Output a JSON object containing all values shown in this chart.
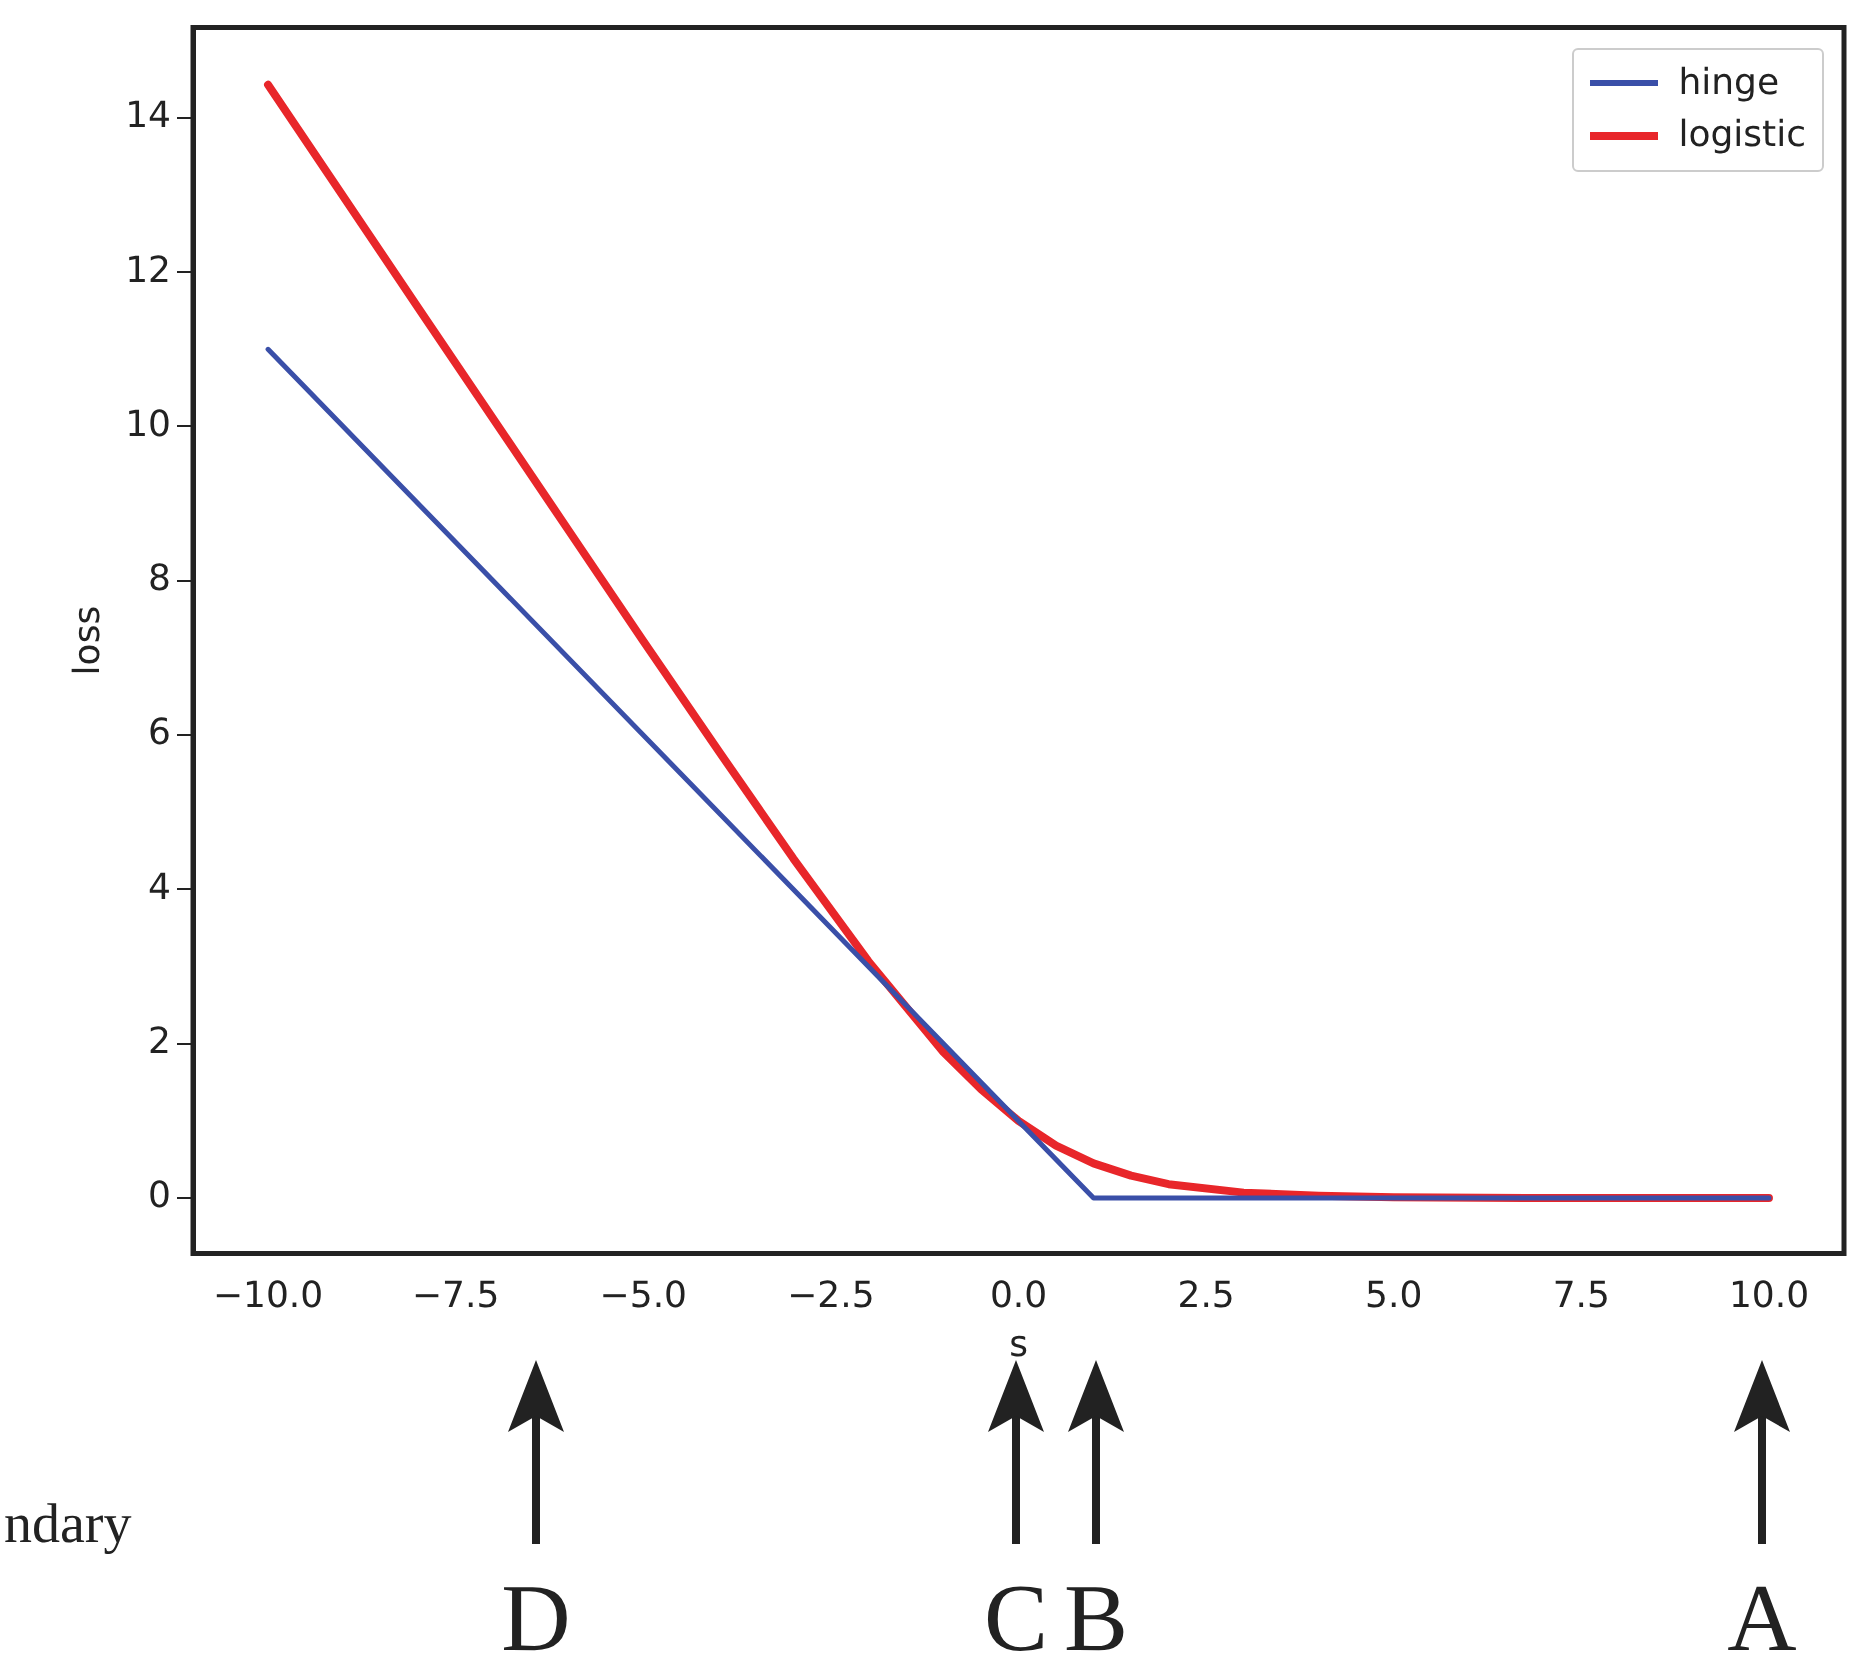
{
  "chart_data": {
    "type": "line",
    "xlabel": "s",
    "ylabel": "loss",
    "xlim": [
      -11,
      11
    ],
    "ylim": [
      -0.72,
      15.17
    ],
    "xticks": [
      {
        "value": -10,
        "label": "−10.0"
      },
      {
        "value": -7.5,
        "label": "−7.5"
      },
      {
        "value": -5,
        "label": "−5.0"
      },
      {
        "value": -2.5,
        "label": "−2.5"
      },
      {
        "value": 0,
        "label": "0.0"
      },
      {
        "value": 2.5,
        "label": "2.5"
      },
      {
        "value": 5,
        "label": "5.0"
      },
      {
        "value": 7.5,
        "label": "7.5"
      },
      {
        "value": 10,
        "label": "10.0"
      }
    ],
    "yticks": [
      0,
      2,
      4,
      6,
      8,
      10,
      12,
      14
    ],
    "series": [
      {
        "name": "hinge",
        "color": "#3a4fa8",
        "x": [
          -10,
          1,
          10
        ],
        "values": [
          11,
          0,
          0
        ]
      },
      {
        "name": "logistic",
        "color": "#e8262a",
        "x": [
          -10,
          -8,
          -6,
          -5,
          -4,
          -3,
          -2,
          -1,
          -0.5,
          0,
          0.5,
          1,
          1.5,
          2,
          3,
          4,
          5,
          7,
          10
        ],
        "values": [
          14.43,
          11.54,
          8.66,
          7.22,
          5.8,
          4.4,
          3.07,
          1.89,
          1.41,
          1,
          0.68,
          0.45,
          0.29,
          0.18,
          0.07,
          0.03,
          0.01,
          0,
          0
        ]
      }
    ],
    "legend": "top right",
    "grid": false,
    "annotations": [
      "D",
      "C",
      "B",
      "A",
      "ndary"
    ]
  }
}
